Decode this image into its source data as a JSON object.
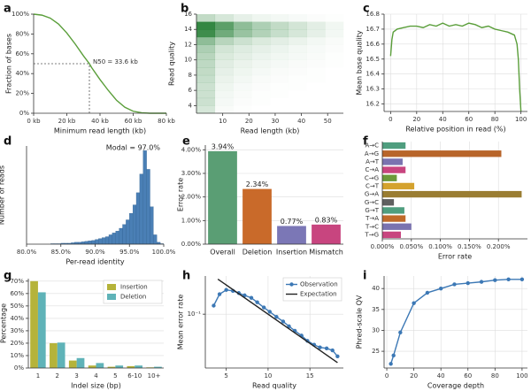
{
  "chart_data": [
    {
      "type": "line",
      "panel": "a",
      "x_label": "Minimum read length (kb)",
      "y_label": "Fraction of bases",
      "x": [
        0,
        5,
        10,
        15,
        20,
        25,
        30,
        33.6,
        35,
        40,
        45,
        50,
        55,
        60,
        65,
        70,
        75,
        80
      ],
      "series": [
        {
          "color": "#5a9e3a",
          "values": [
            100,
            99,
            96,
            90,
            81,
            70,
            58,
            50,
            46,
            34,
            23,
            13,
            6,
            2,
            0.5,
            0,
            0,
            0
          ]
        }
      ],
      "guide": {
        "x": 33.6,
        "y": 50
      },
      "annotation": "N50 = 33.6 kb",
      "xlim": [
        0,
        80
      ],
      "xticks": [
        {
          "value": 0,
          "label": "0 kb"
        },
        {
          "value": 20,
          "label": "20 kb"
        },
        {
          "value": 40,
          "label": "40 kb"
        },
        {
          "value": 60,
          "label": "60 kb"
        },
        {
          "value": 80,
          "label": "80 kb"
        }
      ],
      "ylim": [
        0,
        100
      ],
      "yticks": [
        {
          "value": 0,
          "label": "0%"
        },
        {
          "value": 20,
          "label": "20%"
        },
        {
          "value": 40,
          "label": "40%"
        },
        {
          "value": 60,
          "label": "60%"
        },
        {
          "value": 80,
          "label": "80%"
        },
        {
          "value": 100,
          "label": "100%"
        }
      ],
      "grid": "none"
    },
    {
      "type": "heatmap",
      "panel": "b",
      "x_label": "Read length (kb)",
      "y_label": "Read quality",
      "color": "#1d7a2e",
      "x_bins": [
        0,
        7,
        14,
        21,
        28,
        35,
        42,
        49,
        56
      ],
      "y_bins": [
        3,
        4,
        5,
        6,
        7,
        8,
        9,
        10,
        11,
        12,
        13,
        14,
        15,
        16
      ],
      "values": [
        [
          20,
          3,
          1,
          0,
          0,
          0,
          0,
          0
        ],
        [
          25,
          5,
          2,
          1,
          0,
          0,
          0,
          0
        ],
        [
          25,
          6,
          3,
          1,
          1,
          0,
          0,
          0
        ],
        [
          25,
          8,
          4,
          2,
          1,
          1,
          0,
          0
        ],
        [
          28,
          10,
          6,
          3,
          2,
          1,
          1,
          0
        ],
        [
          30,
          12,
          8,
          5,
          3,
          2,
          1,
          0
        ],
        [
          32,
          15,
          10,
          7,
          5,
          3,
          2,
          1
        ],
        [
          35,
          18,
          13,
          9,
          7,
          5,
          3,
          1
        ],
        [
          40,
          22,
          16,
          12,
          9,
          6,
          4,
          2
        ],
        [
          55,
          35,
          25,
          18,
          14,
          10,
          6,
          3
        ],
        [
          95,
          70,
          50,
          38,
          28,
          20,
          12,
          6
        ],
        [
          100,
          80,
          55,
          40,
          30,
          22,
          14,
          7
        ],
        [
          30,
          20,
          12,
          8,
          6,
          4,
          2,
          1
        ]
      ],
      "xlim": [
        0,
        56
      ],
      "xticks": [
        10,
        20,
        30,
        40,
        50
      ],
      "ylim": [
        3,
        16
      ],
      "yticks": [
        4,
        6,
        8,
        10,
        12,
        14,
        16
      ],
      "grid": "none"
    },
    {
      "type": "line",
      "panel": "c",
      "x_label": "Relative position in read (%)",
      "y_label": "Mean base quality",
      "x": [
        0,
        1,
        2,
        5,
        10,
        15,
        20,
        25,
        30,
        35,
        40,
        45,
        50,
        55,
        60,
        65,
        70,
        75,
        80,
        85,
        90,
        95,
        97,
        98,
        99,
        100
      ],
      "series": [
        {
          "color": "#5a9e3a",
          "values": [
            16.52,
            16.63,
            16.68,
            16.7,
            16.71,
            16.72,
            16.72,
            16.71,
            16.73,
            16.72,
            16.74,
            16.72,
            16.73,
            16.72,
            16.74,
            16.73,
            16.71,
            16.72,
            16.7,
            16.69,
            16.68,
            16.66,
            16.6,
            16.5,
            16.3,
            16.15
          ]
        }
      ],
      "xlim": [
        -5,
        105
      ],
      "xticks": [
        0,
        20,
        40,
        60,
        80,
        100
      ],
      "ylim": [
        16.15,
        16.8
      ],
      "yticks": [
        16.2,
        16.3,
        16.4,
        16.5,
        16.6,
        16.7,
        16.8
      ],
      "grid": "both"
    },
    {
      "type": "histogram",
      "panel": "d",
      "x_label": "Per-read identity",
      "y_label": "Number of reads",
      "color": "#4a7fb5",
      "annotation": "Modal = 97.0%",
      "bins": [
        80,
        80.5,
        81,
        81.5,
        82,
        82.5,
        83,
        83.5,
        84,
        84.5,
        85,
        85.5,
        86,
        86.5,
        87,
        87.5,
        88,
        88.5,
        89,
        89.5,
        90,
        90.5,
        91,
        91.5,
        92,
        92.5,
        93,
        93.5,
        94,
        94.5,
        95,
        95.5,
        96,
        96.5,
        97,
        97.5,
        98,
        98.5,
        99,
        99.5,
        100
      ],
      "values": [
        0,
        0,
        0,
        0,
        0,
        0,
        0,
        0.5,
        0.5,
        0.5,
        1,
        1,
        1,
        1.5,
        2,
        2,
        2.5,
        3,
        3.5,
        4,
        5,
        6,
        7,
        8,
        10,
        12,
        14,
        17,
        21,
        26,
        33,
        42,
        55,
        75,
        100,
        80,
        40,
        10,
        2,
        0.5
      ],
      "xlim": [
        80,
        100
      ],
      "xticks": [
        {
          "value": 80,
          "label": "80.0%"
        },
        {
          "value": 85,
          "label": "85.0%"
        },
        {
          "value": 90,
          "label": "90.0%"
        },
        {
          "value": 95,
          "label": "95.0%"
        },
        {
          "value": 100,
          "label": "100.0%"
        }
      ],
      "ylim": [
        0,
        105
      ],
      "grid": "none"
    },
    {
      "type": "bar",
      "panel": "e",
      "y_label": "Error rate",
      "categories": [
        "Overall",
        "Deletion",
        "Insertion",
        "Mismatch"
      ],
      "values": [
        3.94,
        2.34,
        0.77,
        0.83
      ],
      "value_labels": [
        "3.94%",
        "2.34%",
        "0.77%",
        "0.83%"
      ],
      "colors": [
        "#5a9e74",
        "#c96a2a",
        "#7b77b6",
        "#c8457f"
      ],
      "ylim": [
        0,
        4.2
      ],
      "yticks": [
        {
          "value": 0,
          "label": "0.00%"
        },
        {
          "value": 1,
          "label": "1.00%"
        },
        {
          "value": 2,
          "label": "2.00%"
        },
        {
          "value": 3,
          "label": "3.00%"
        },
        {
          "value": 4,
          "label": "4.00%"
        }
      ],
      "grid": "y"
    },
    {
      "type": "bar",
      "orientation": "horizontal",
      "panel": "f",
      "x_label": "Error rate",
      "categories": [
        "A→C",
        "A→G",
        "A→T",
        "C→A",
        "C→G",
        "C→T",
        "G→A",
        "G→C",
        "G→T",
        "T→A",
        "T→C",
        "T→G"
      ],
      "values": [
        0.04,
        0.205,
        0.035,
        0.04,
        0.025,
        0.055,
        0.24,
        0.02,
        0.038,
        0.04,
        0.05,
        0.032
      ],
      "colors": [
        "#4f9e7f",
        "#b8652a",
        "#7a73b0",
        "#c8457f",
        "#6b9a3a",
        "#d4a22e",
        "#9a7d32",
        "#606060",
        "#4f9e7f",
        "#c06a2a",
        "#7a73b0",
        "#c8457f"
      ],
      "xlim": [
        0,
        0.25
      ],
      "xticks": [
        {
          "value": 0,
          "label": "0.000%"
        },
        {
          "value": 0.05,
          "label": "0.050%"
        },
        {
          "value": 0.1,
          "label": "0.100%"
        },
        {
          "value": 0.15,
          "label": "0.150%"
        },
        {
          "value": 0.2,
          "label": "0.200%"
        }
      ],
      "grid": "x"
    },
    {
      "type": "bar",
      "panel": "g",
      "x_label": "Indel size (bp)",
      "y_label": "Percentage",
      "categories": [
        "1",
        "2",
        "3",
        "4",
        "5",
        "6-10",
        "10+"
      ],
      "series": [
        {
          "name": "Insertion",
          "color": "#b5b33a",
          "values": [
            70,
            20,
            6,
            2,
            1,
            1.5,
            0.5
          ]
        },
        {
          "name": "Deletion",
          "color": "#5fb3b8",
          "values": [
            61,
            20.5,
            8,
            4,
            2,
            2,
            1
          ]
        }
      ],
      "ylim": [
        0,
        72
      ],
      "yticks": [
        {
          "value": 0,
          "label": "0%"
        },
        {
          "value": 10,
          "label": "10%"
        },
        {
          "value": 20,
          "label": "20%"
        },
        {
          "value": 30,
          "label": "30%"
        },
        {
          "value": 40,
          "label": "40%"
        },
        {
          "value": 50,
          "label": "50%"
        },
        {
          "value": 60,
          "label": "60%"
        },
        {
          "value": 70,
          "label": "70%"
        }
      ],
      "legend": "upper right",
      "grid": "y"
    },
    {
      "type": "line",
      "panel": "h",
      "x_label": "Read quality",
      "y_label": "Mean error rate",
      "yscale": "log",
      "series": [
        {
          "name": "Observation",
          "color": "#3c78b5",
          "marker": true,
          "x": [
            3.5,
            4.2,
            5,
            5.8,
            6.5,
            7.2,
            8,
            8.7,
            9.5,
            10.2,
            11,
            11.8,
            12.5,
            13.2,
            14,
            14.7,
            15.5,
            16.2,
            17,
            17.7,
            18.3
          ],
          "values": [
            0.14,
            0.22,
            0.26,
            0.25,
            0.23,
            0.21,
            0.19,
            0.16,
            0.13,
            0.11,
            0.09,
            0.075,
            0.062,
            0.052,
            0.043,
            0.035,
            0.03,
            0.027,
            0.026,
            0.024,
            0.019
          ]
        },
        {
          "name": "Expectation",
          "color": "#222222",
          "x": [
            4,
            18.3
          ],
          "values": [
            0.398,
            0.0148
          ]
        }
      ],
      "xlim": [
        2.5,
        19
      ],
      "xticks": [
        5,
        10,
        15
      ],
      "ylim": [
        0.012,
        0.45
      ],
      "yticks": [
        {
          "value": 0.1,
          "label": "10⁻¹"
        }
      ],
      "legend": "upper right",
      "grid": "both"
    },
    {
      "type": "line",
      "panel": "i",
      "x_label": "Coverage depth",
      "y_label": "Phred-scale QV",
      "x": [
        3,
        5,
        10,
        20,
        30,
        40,
        50,
        60,
        70,
        80,
        90,
        100
      ],
      "series": [
        {
          "color": "#3c78b5",
          "marker": true,
          "values": [
            22,
            24,
            29.5,
            36.5,
            39,
            40,
            41,
            41.3,
            41.6,
            42,
            42.2,
            42.2
          ]
        }
      ],
      "xlim": [
        -2,
        104
      ],
      "xticks": [
        0,
        20,
        40,
        60,
        80,
        100
      ],
      "ylim": [
        21,
        43
      ],
      "yticks": [
        25,
        30,
        35,
        40
      ],
      "grid": "both"
    }
  ]
}
